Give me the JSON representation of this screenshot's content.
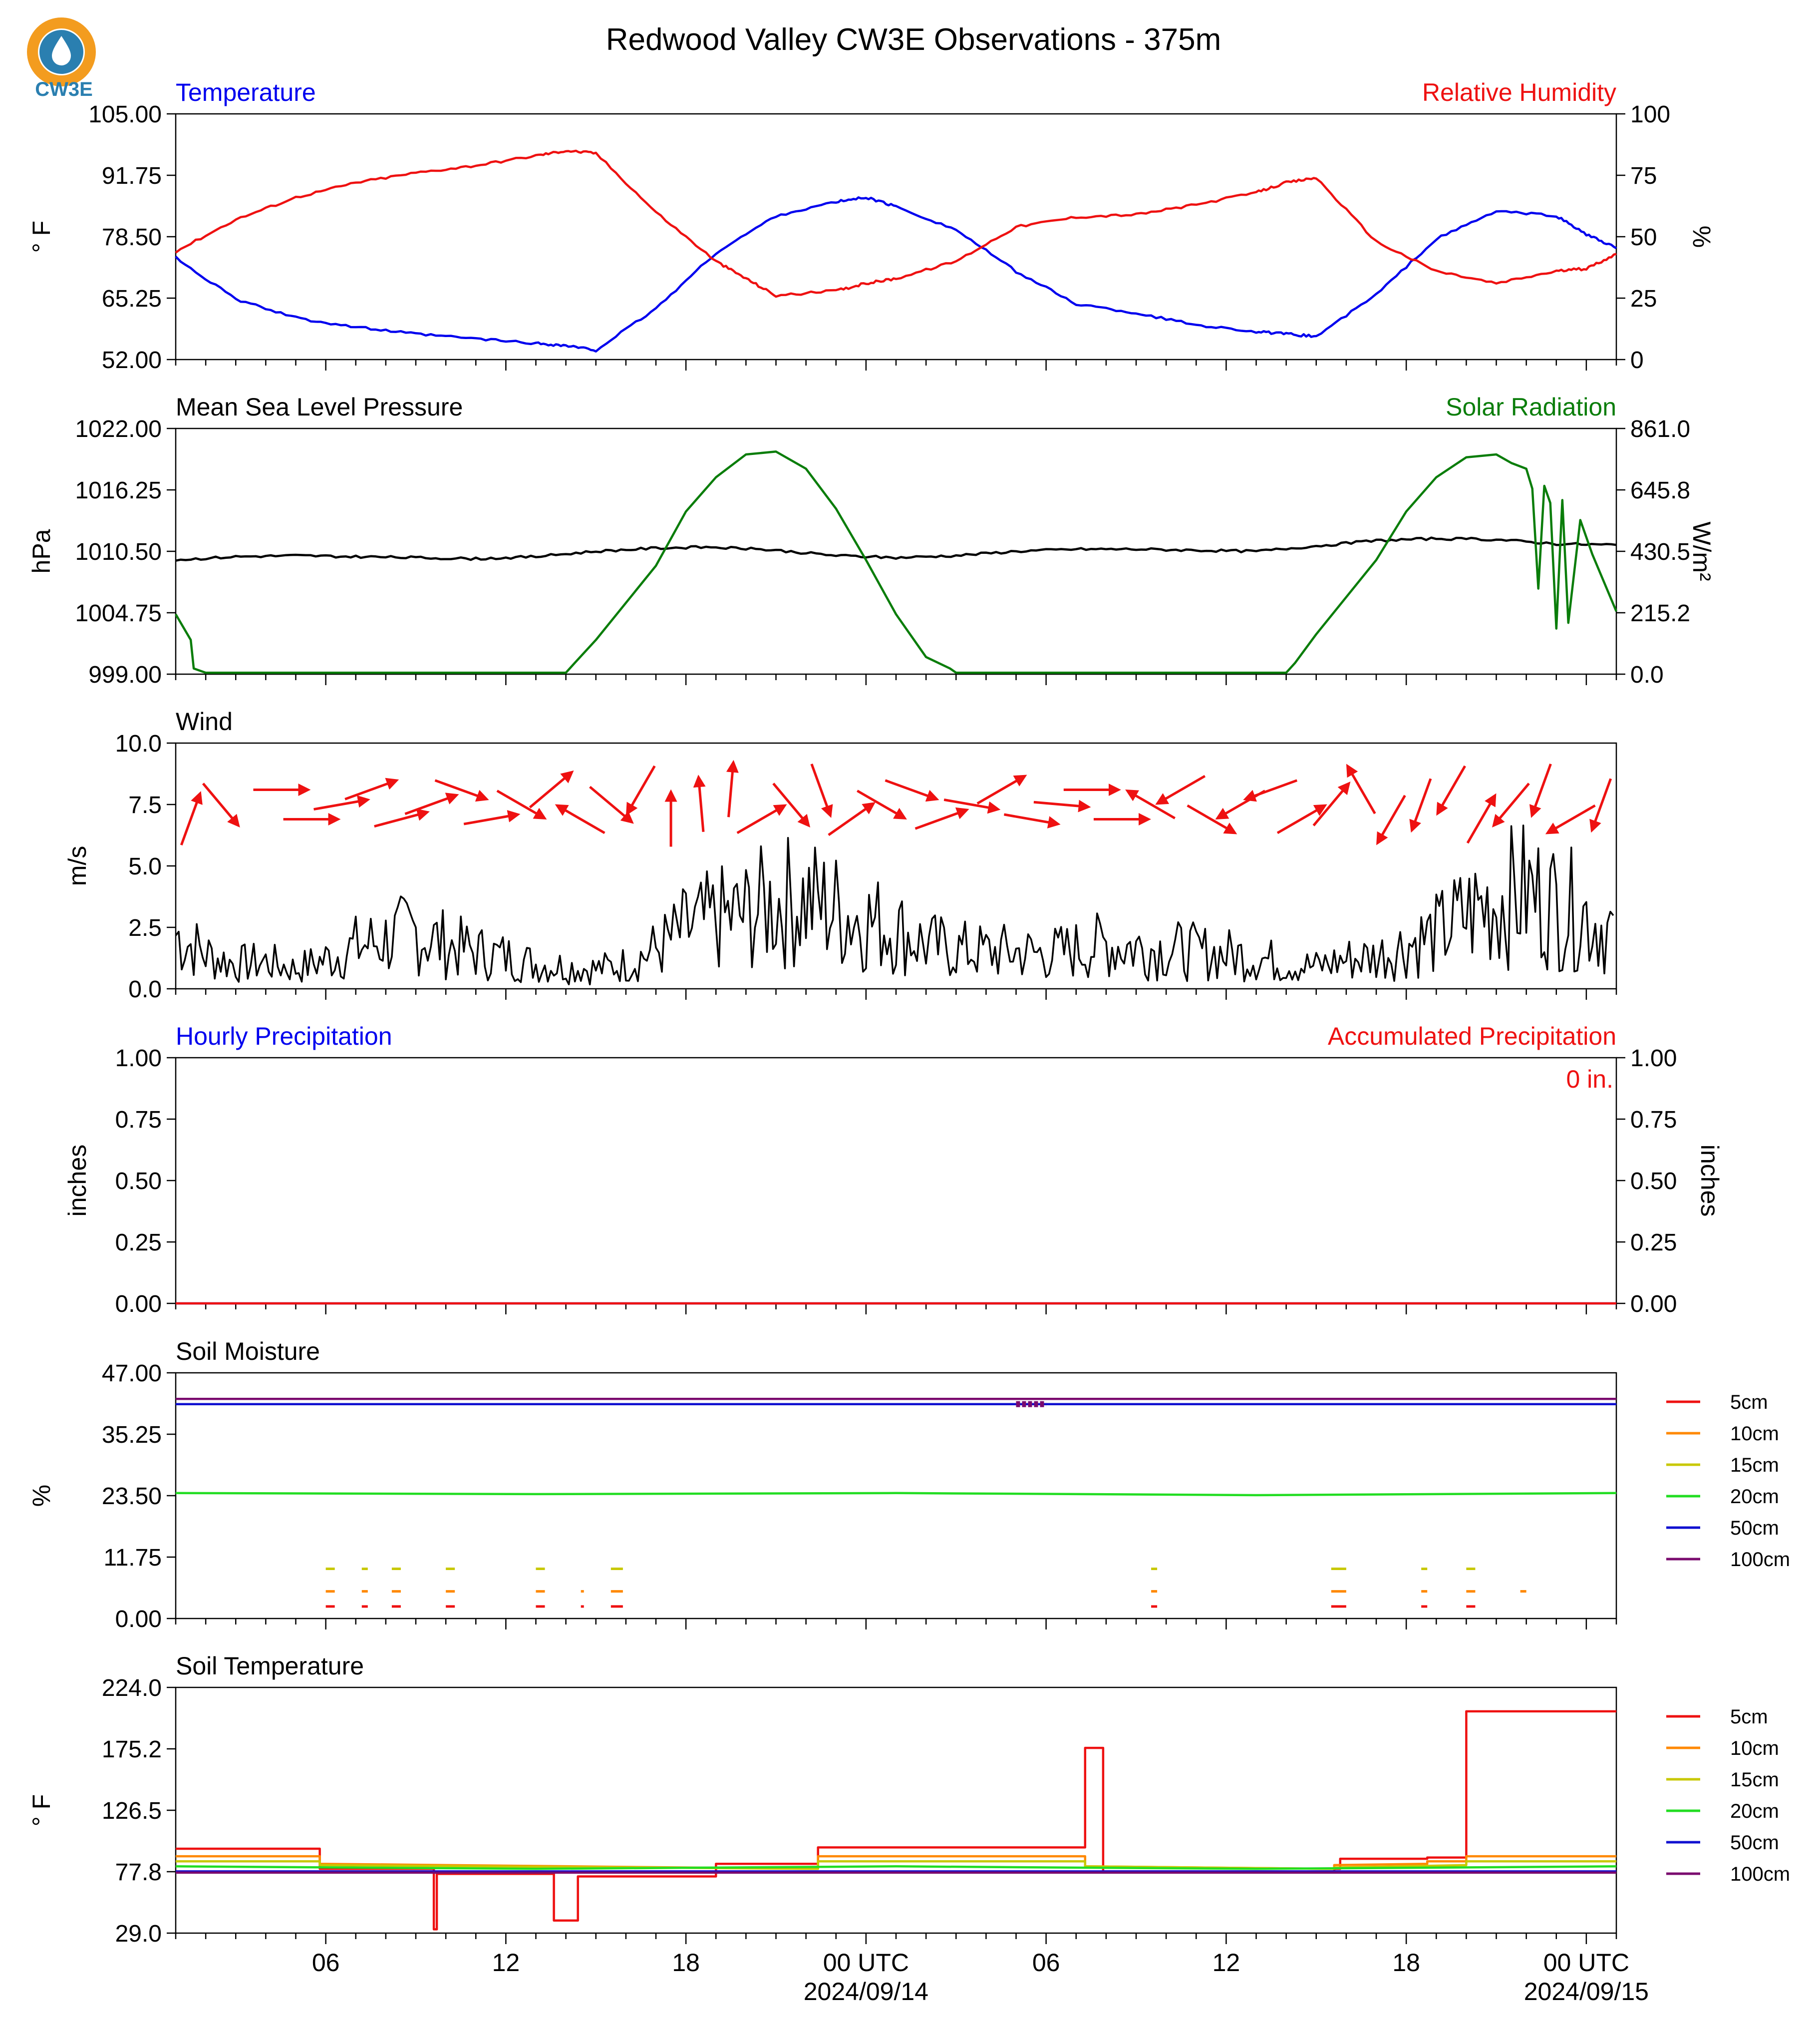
{
  "title": "Redwood Valley CW3E Observations - 375m",
  "logo": {
    "text": "CW3E",
    "ring_color": "#f39c1f",
    "drop_color": "#2a7fb0"
  },
  "time_axis": {
    "tick_labels": [
      "06",
      "12",
      "18",
      "00 UTC",
      "06",
      "12",
      "18",
      "00 UTC"
    ],
    "date_labels": [
      "2024/09/14",
      "2024/09/15"
    ],
    "start": "2024-09-13T01:00Z",
    "end": "2024-09-15T01:00Z"
  },
  "colors": {
    "temperature": "#0000ee",
    "humidity": "#ee1111",
    "pressure": "#000000",
    "solar": "#0a7d0a",
    "wind": "#000000",
    "arrows": "#ee1111"
  },
  "chart_data": [
    {
      "type": "line",
      "name": "temperature-humidity",
      "left_title": "Temperature",
      "right_title": "Relative Humidity",
      "ylabel_left": "° F",
      "ylabel_right": "%",
      "ylim_left": [
        52,
        105
      ],
      "ylim_right": [
        0,
        100
      ],
      "yticks_left": [
        "105.00",
        "91.75",
        "78.50",
        "65.25",
        "52.00"
      ],
      "yticks_right": [
        "100",
        "75",
        "50",
        "25",
        "0"
      ],
      "series": [
        {
          "name": "Temperature",
          "axis": "left",
          "color": "#0000ee",
          "x": [
            0,
            2,
            4,
            6,
            8,
            10,
            12,
            13,
            14,
            16,
            18,
            20,
            22,
            23,
            24,
            26,
            28,
            30,
            32,
            34,
            36,
            37,
            38,
            40,
            42,
            44,
            46,
            47,
            48
          ],
          "y": [
            74,
            65,
            61,
            59,
            57.5,
            56.5,
            55.5,
            55,
            54,
            63,
            75,
            83,
            86,
            87,
            85,
            80,
            71,
            64,
            62,
            59.5,
            58,
            57.5,
            57,
            66,
            78,
            84,
            83,
            79,
            76
          ]
        },
        {
          "name": "Relative Humidity",
          "axis": "right",
          "color": "#ee1111",
          "x": [
            0,
            2,
            4,
            6,
            8,
            10,
            12,
            13,
            14,
            16,
            18,
            19,
            20,
            22,
            23,
            24,
            26,
            28,
            30,
            32,
            34,
            36,
            37,
            38,
            40,
            42,
            44,
            46,
            47,
            48
          ],
          "y": [
            44,
            57,
            66,
            72,
            76,
            79,
            83,
            85,
            84,
            60,
            40,
            33,
            26,
            28,
            31,
            33,
            40,
            54,
            58,
            59,
            63,
            68,
            72,
            74,
            48,
            36,
            31,
            36,
            37,
            43
          ]
        }
      ]
    },
    {
      "type": "line",
      "name": "pressure-solar",
      "left_title": "Mean Sea Level Pressure",
      "right_title": "Solar Radiation",
      "ylabel_left": "hPa",
      "ylabel_right": "W/m²",
      "ylim_left": [
        999,
        1022
      ],
      "ylim_right": [
        0,
        861
      ],
      "yticks_left": [
        "1022.00",
        "1016.25",
        "1010.50",
        "1004.75",
        "999.00"
      ],
      "yticks_right": [
        "861.0",
        "645.8",
        "430.5",
        "215.2",
        "0.0"
      ],
      "series": [
        {
          "name": "Mean Sea Level Pressure",
          "axis": "left",
          "color": "#000000",
          "x": [
            0,
            2,
            4,
            6,
            8,
            10,
            12,
            14,
            16,
            18,
            20,
            22,
            24,
            26,
            28,
            30,
            32,
            34,
            36,
            38,
            40,
            42,
            44,
            46,
            48
          ],
          "y": [
            1009.7,
            1010.0,
            1010.1,
            1010.0,
            1009.9,
            1009.8,
            1010.0,
            1010.5,
            1010.8,
            1010.9,
            1010.6,
            1010.1,
            1009.9,
            1010.1,
            1010.5,
            1010.7,
            1010.7,
            1010.6,
            1010.5,
            1011.0,
            1011.5,
            1011.7,
            1011.6,
            1011.2,
            1011.1
          ]
        },
        {
          "name": "Solar Radiation",
          "axis": "right",
          "color": "#0a7d0a",
          "x": [
            0,
            0.5,
            0.6,
            1,
            13,
            13.3,
            14,
            16,
            17,
            18,
            19,
            20,
            21,
            22,
            23,
            24,
            25,
            25.8,
            26,
            37,
            37.3,
            38,
            40,
            41,
            42,
            43,
            44,
            44.5,
            45,
            45.2,
            45.4,
            45.6,
            45.8,
            46,
            46.2,
            46.4,
            46.8,
            47.2,
            48
          ],
          "y": [
            210,
            120,
            20,
            5,
            5,
            40,
            120,
            380,
            570,
            690,
            770,
            780,
            720,
            580,
            400,
            210,
            60,
            20,
            5,
            5,
            40,
            140,
            400,
            570,
            690,
            760,
            770,
            740,
            720,
            650,
            300,
            660,
            600,
            160,
            610,
            180,
            540,
            420,
            220
          ]
        },
        {
          "name": "Wind",
          "axis": "left",
          "color": "#000000",
          "hidden": true,
          "x": [],
          "y": []
        }
      ]
    },
    {
      "type": "line",
      "name": "wind",
      "left_title": "Wind",
      "ylabel_left": "m/s",
      "ylim_left": [
        0,
        10
      ],
      "yticks_left": [
        "10.0",
        "7.5",
        "5.0",
        "2.5",
        "0.0"
      ],
      "series": [
        {
          "name": "Wind speed",
          "axis": "left",
          "color": "#000000",
          "x": [
            0,
            1,
            2,
            3,
            4,
            5,
            6,
            7,
            8,
            9,
            10,
            11,
            12,
            13,
            14,
            15,
            16,
            17,
            18,
            19,
            20,
            21,
            22,
            23,
            24,
            25,
            26,
            27,
            28,
            29,
            30,
            31,
            32,
            33,
            34,
            35,
            36,
            37,
            38,
            39,
            40,
            41,
            42,
            43,
            44,
            45,
            46,
            47,
            48
          ],
          "y": [
            2.2,
            1.4,
            1.0,
            1.1,
            0.8,
            1.2,
            1.7,
            2.0,
            2.3,
            1.8,
            1.5,
            1.3,
            1.0,
            0.9,
            0.8,
            1.0,
            1.6,
            2.4,
            2.8,
            3.0,
            3.5,
            3.6,
            3.2,
            2.8,
            2.4,
            1.8,
            1.6,
            1.5,
            1.5,
            1.4,
            1.6,
            1.8,
            1.7,
            1.6,
            1.5,
            1.4,
            1.3,
            1.0,
            0.9,
            1.2,
            1.3,
            1.8,
            2.2,
            3.0,
            3.6,
            3.9,
            3.4,
            3.0,
            2.2
          ]
        }
      ],
      "arrows": {
        "description": "wind direction vectors",
        "x": [
          0,
          1,
          3,
          4,
          5,
          6,
          7,
          8,
          9,
          10,
          11,
          12,
          13,
          14,
          15,
          16,
          17,
          18,
          19,
          20,
          21,
          22,
          23,
          24,
          25,
          26,
          27,
          28,
          29,
          30,
          31,
          32,
          33,
          34,
          35,
          36,
          37,
          38,
          39,
          40,
          41,
          42,
          43,
          44,
          45,
          46,
          47
        ],
        "dir_deg": [
          20,
          140,
          90,
          90,
          80,
          70,
          75,
          70,
          110,
          80,
          120,
          50,
          300,
          130,
          210,
          0,
          355,
          5,
          60,
          140,
          160,
          55,
          120,
          110,
          70,
          100,
          60,
          100,
          95,
          90,
          90,
          300,
          240,
          120,
          240,
          250,
          60,
          40,
          330,
          210,
          200,
          210,
          30,
          220,
          200,
          240,
          200
        ]
      }
    },
    {
      "type": "line",
      "name": "precipitation",
      "left_title": "Hourly Precipitation",
      "right_title": "Accumulated Precipitation",
      "annotation": "0 in.",
      "ylabel_left": "inches",
      "ylabel_right": "inches",
      "ylim_left": [
        0,
        1
      ],
      "ylim_right": [
        0,
        1
      ],
      "yticks_left": [
        "1.00",
        "0.75",
        "0.50",
        "0.25",
        "0.00"
      ],
      "yticks_right": [
        "1.00",
        "0.75",
        "0.50",
        "0.25",
        "0.00"
      ],
      "series": [
        {
          "name": "Hourly Precipitation",
          "axis": "left",
          "color": "#0000ee",
          "x": [
            0,
            48
          ],
          "y": [
            0,
            0
          ]
        },
        {
          "name": "Accumulated Precipitation",
          "axis": "right",
          "color": "#ee1111",
          "x": [
            0,
            48
          ],
          "y": [
            0,
            0
          ]
        }
      ]
    },
    {
      "type": "line",
      "name": "soil-moisture",
      "left_title": "Soil Moisture",
      "ylabel_left": "%",
      "ylim_left": [
        0,
        47
      ],
      "yticks_left": [
        "47.00",
        "35.25",
        "23.50",
        "11.75",
        "0.00"
      ],
      "legend": [
        "5cm",
        "10cm",
        "15cm",
        "20cm",
        "50cm",
        "100cm"
      ],
      "series": [
        {
          "name": "100cm",
          "color": "#7a0a6e",
          "x": [
            0,
            48
          ],
          "y": [
            42.0,
            42.0
          ]
        },
        {
          "name": "50cm",
          "color": "#1010d0",
          "x": [
            0,
            48
          ],
          "y": [
            41.0,
            41.0
          ]
        },
        {
          "name": "20cm",
          "color": "#22dd22",
          "x": [
            0,
            12,
            24,
            36,
            48
          ],
          "y": [
            24.0,
            23.8,
            24.0,
            23.6,
            24.0
          ]
        }
      ],
      "segments": [
        {
          "name": "15cm",
          "color": "#c8c800",
          "y": 9.5,
          "x": [
            [
              5,
              5.3
            ],
            [
              6.2,
              6.4
            ],
            [
              7.2,
              7.5
            ],
            [
              9,
              9.3
            ],
            [
              12,
              12.3
            ],
            [
              14.5,
              14.9
            ],
            [
              32.5,
              32.7
            ],
            [
              38.5,
              39
            ],
            [
              41.5,
              41.7
            ],
            [
              43,
              43.3
            ]
          ]
        },
        {
          "name": "10cm",
          "color": "#ff8800",
          "y": 5.2,
          "x": [
            [
              5,
              5.3
            ],
            [
              6.2,
              6.4
            ],
            [
              7.2,
              7.5
            ],
            [
              9,
              9.3
            ],
            [
              12,
              12.3
            ],
            [
              13.5,
              13.6
            ],
            [
              14.5,
              14.9
            ],
            [
              32.5,
              32.7
            ],
            [
              38.5,
              39
            ],
            [
              41.5,
              41.7
            ],
            [
              43,
              43.3
            ],
            [
              44.8,
              45
            ]
          ]
        },
        {
          "name": "5cm",
          "color": "#ee1111",
          "y": 2.3,
          "x": [
            [
              5,
              5.3
            ],
            [
              6.2,
              6.4
            ],
            [
              7.2,
              7.5
            ],
            [
              9,
              9.3
            ],
            [
              12,
              12.3
            ],
            [
              13.5,
              13.6
            ],
            [
              14.5,
              14.9
            ],
            [
              32.5,
              32.7
            ],
            [
              38.5,
              39
            ],
            [
              41.5,
              41.7
            ],
            [
              43,
              43.3
            ]
          ]
        },
        {
          "name": "100cm",
          "color": "#7a0a6e",
          "y": 41.0,
          "x": [
            [
              28,
              29
            ]
          ]
        }
      ]
    },
    {
      "type": "line",
      "name": "soil-temperature",
      "left_title": "Soil Temperature",
      "ylabel_left": "° F",
      "ylim_left": [
        29,
        224
      ],
      "yticks_left": [
        "224.0",
        "175.2",
        "126.5",
        "77.8",
        "29.0"
      ],
      "legend": [
        "5cm",
        "10cm",
        "15cm",
        "20cm",
        "50cm",
        "100cm"
      ],
      "series": [
        {
          "name": "5cm",
          "color": "#ee1111",
          "x": [
            0,
            4.8,
            4.8,
            8.6,
            8.6,
            8.7,
            8.7,
            12.6,
            12.6,
            13.4,
            13.4,
            18,
            18,
            21.4,
            21.4,
            30.3,
            30.3,
            30.9,
            30.9,
            30.9,
            30.9,
            38.6,
            38.6,
            38.8,
            38.8,
            41.7,
            41.7,
            43,
            43,
            48
          ],
          "y": [
            96,
            96,
            80,
            80,
            32,
            32,
            76,
            76,
            39,
            39,
            74,
            74,
            84,
            84,
            97,
            97,
            176,
            176,
            80,
            80,
            78,
            78,
            80,
            80,
            88,
            88,
            89,
            89,
            205,
            205
          ]
        },
        {
          "name": "10cm",
          "color": "#ff8800",
          "x": [
            0,
            4.8,
            4.8,
            21.4,
            21.4,
            30.3,
            30.3,
            38.6,
            38.6,
            41.7,
            41.7,
            43,
            43,
            48
          ],
          "y": [
            90,
            90,
            84,
            80,
            90,
            90,
            82,
            80,
            83,
            84,
            86,
            86,
            90,
            90
          ]
        },
        {
          "name": "15cm",
          "color": "#c8c800",
          "x": [
            0,
            4.8,
            4.8,
            21.4,
            21.4,
            30.3,
            30.3,
            38.6,
            38.6,
            43,
            43,
            48
          ],
          "y": [
            86,
            86,
            83,
            80,
            86,
            86,
            82,
            80,
            81,
            83,
            86,
            86
          ]
        },
        {
          "name": "20cm",
          "color": "#22dd22",
          "x": [
            0,
            12,
            24,
            36,
            48
          ],
          "y": [
            82,
            80,
            82,
            80,
            82
          ]
        },
        {
          "name": "50cm",
          "color": "#1010d0",
          "x": [
            0,
            48
          ],
          "y": [
            78,
            78
          ]
        },
        {
          "name": "100cm",
          "color": "#7a0a6e",
          "x": [
            0,
            48
          ],
          "y": [
            77,
            77
          ]
        }
      ]
    }
  ]
}
